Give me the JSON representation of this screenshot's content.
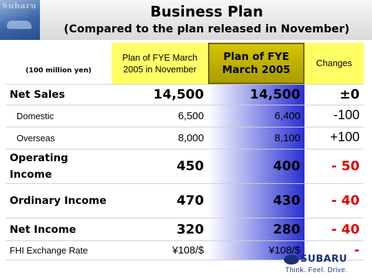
{
  "header": {
    "logo_text": "Subaru",
    "title": "Business Plan",
    "subtitle": "(Compared to the plan released in November)"
  },
  "table": {
    "unit": "(100 million yen)",
    "columns": {
      "nov": "Plan of FYE March 2005 in November",
      "fye": "Plan of FYE March 2005",
      "changes": "Changes"
    },
    "rows": [
      {
        "label": "Net Sales",
        "nov": "14,500",
        "fye": "14,500",
        "change": "±0"
      },
      {
        "label": "Domestic",
        "nov": "6,500",
        "fye": "6,400",
        "change": "-100"
      },
      {
        "label": "Overseas",
        "nov": "8,000",
        "fye": "8,100",
        "change": "+100"
      },
      {
        "label": "Operating Income",
        "nov": "450",
        "fye": "400",
        "change": "- 50"
      },
      {
        "label": "Ordinary Income",
        "nov": "470",
        "fye": "430",
        "change": "- 40"
      },
      {
        "label": "Net Income",
        "nov": "320",
        "fye": "280",
        "change": "- 40"
      },
      {
        "label": "FHI Exchange Rate",
        "nov": "¥108/$",
        "fye": "¥108/$",
        "change": "-"
      }
    ]
  },
  "brand": {
    "wordmark": "SUBARU",
    "tagline": "Think. Feel. Drive."
  },
  "colors": {
    "header_yellow": "#ffff66",
    "highlight_gold": "#c8b800",
    "negative_red": "#e00000",
    "gradient_blue": "#2a2fd0",
    "brand_navy": "#1a2f7a"
  }
}
